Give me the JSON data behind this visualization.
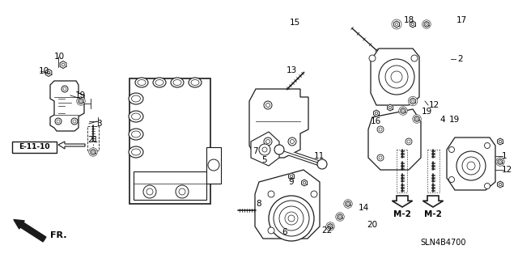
{
  "bg_color": "#ffffff",
  "line_color": "#1a1a1a",
  "text_color": "#000000",
  "diagram_code": "SLN4B4700",
  "fr_label": "FR.",
  "e_label": "E-11-10",
  "m2_label": "M-2",
  "font_size": 7.5,
  "labels": [
    [
      "1",
      620,
      193,
      "left"
    ],
    [
      "2",
      565,
      73,
      "left"
    ],
    [
      "3",
      119,
      153,
      "left"
    ],
    [
      "4",
      543,
      148,
      "left"
    ],
    [
      "5",
      326,
      198,
      "center"
    ],
    [
      "6",
      352,
      287,
      "center"
    ],
    [
      "7",
      312,
      187,
      "left"
    ],
    [
      "8",
      316,
      252,
      "left"
    ],
    [
      "9",
      356,
      225,
      "left"
    ],
    [
      "10",
      48,
      88,
      "left"
    ],
    [
      "10",
      67,
      70,
      "left"
    ],
    [
      "11",
      388,
      193,
      "left"
    ],
    [
      "12",
      530,
      130,
      "left"
    ],
    [
      "12",
      620,
      210,
      "left"
    ],
    [
      "13",
      354,
      87,
      "left"
    ],
    [
      "14",
      443,
      257,
      "left"
    ],
    [
      "15",
      358,
      28,
      "left"
    ],
    [
      "16",
      458,
      150,
      "left"
    ],
    [
      "17",
      564,
      25,
      "left"
    ],
    [
      "18",
      499,
      25,
      "left"
    ],
    [
      "19",
      93,
      118,
      "left"
    ],
    [
      "19",
      521,
      138,
      "left"
    ],
    [
      "19",
      555,
      148,
      "left"
    ],
    [
      "20",
      453,
      278,
      "left"
    ],
    [
      "21",
      108,
      173,
      "left"
    ],
    [
      "22",
      397,
      285,
      "left"
    ]
  ],
  "leader_lines": [
    [
      113,
      153,
      100,
      153
    ],
    [
      556,
      73,
      563,
      73
    ],
    [
      518,
      130,
      528,
      130
    ],
    [
      613,
      193,
      619,
      193
    ],
    [
      607,
      210,
      619,
      210
    ],
    [
      455,
      148,
      535,
      148
    ],
    [
      467,
      150,
      456,
      150
    ]
  ]
}
